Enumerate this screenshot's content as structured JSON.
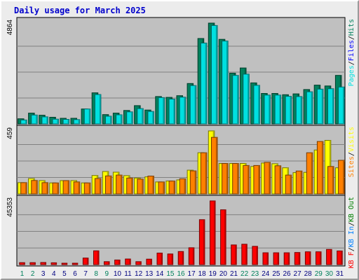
{
  "title": "Daily usage for March 2025",
  "colors": {
    "hits": "#00805c",
    "files": "#0000ff",
    "pages": "#00e0e0",
    "visits": "#ffff00",
    "sites": "#ff8000",
    "kb_in": "#0080ff",
    "kb_out": "#008000",
    "kb_f": "#ff0000",
    "weekend_label": "#00805c",
    "weekday_label": "#000080"
  },
  "chart_data": [
    {
      "type": "bar",
      "panel": "hits-files-pages",
      "ylabel_max": "4864",
      "ylim": [
        0,
        4864
      ],
      "legend": [
        "Pages",
        "Files",
        "Hits"
      ],
      "categories": [
        "1",
        "2",
        "3",
        "4",
        "5",
        "6",
        "7",
        "8",
        "9",
        "10",
        "11",
        "12",
        "13",
        "14",
        "15",
        "16",
        "17",
        "18",
        "19",
        "20",
        "21",
        "22",
        "23",
        "24",
        "25",
        "26",
        "27",
        "28",
        "29",
        "30",
        "31"
      ],
      "weekend_days": [
        1,
        2,
        8,
        9,
        15,
        16,
        22,
        23,
        29,
        30
      ],
      "series": [
        {
          "name": "Hits",
          "values": [
            245,
            520,
            420,
            320,
            270,
            270,
            720,
            1500,
            450,
            520,
            650,
            880,
            670,
            1320,
            1280,
            1360,
            1950,
            4120,
            4864,
            4080,
            2450,
            2700,
            1980,
            1470,
            1470,
            1410,
            1450,
            1660,
            1870,
            1830,
            2340
          ]
        },
        {
          "name": "Files",
          "values": [
            190,
            430,
            340,
            230,
            220,
            210,
            720,
            1420,
            370,
            440,
            580,
            740,
            600,
            1270,
            1200,
            1290,
            1850,
            3900,
            4750,
            4000,
            2340,
            2400,
            1860,
            1390,
            1390,
            1330,
            1320,
            1550,
            1680,
            1700,
            1780
          ]
        }
      ]
    },
    {
      "type": "bar",
      "panel": "visits-sites",
      "ylabel_max": "459",
      "ylim": [
        0,
        459
      ],
      "legend": [
        "Sites",
        "Visits"
      ],
      "categories": [
        "1",
        "2",
        "3",
        "4",
        "5",
        "6",
        "7",
        "8",
        "9",
        "10",
        "11",
        "12",
        "13",
        "14",
        "15",
        "16",
        "17",
        "18",
        "19",
        "20",
        "21",
        "22",
        "23",
        "24",
        "25",
        "26",
        "27",
        "28",
        "29",
        "30",
        "31"
      ],
      "series": [
        {
          "name": "Visits",
          "values": [
            82,
            112,
            97,
            80,
            97,
            97,
            80,
            134,
            163,
            158,
            133,
            116,
            124,
            87,
            94,
            102,
            173,
            300,
            459,
            222,
            222,
            222,
            200,
            225,
            220,
            190,
            155,
            157,
            320,
            390,
            190
          ]
        },
        {
          "name": "Sites",
          "values": [
            82,
            98,
            82,
            80,
            97,
            87,
            80,
            112,
            131,
            137,
            116,
            108,
            130,
            87,
            94,
            110,
            168,
            300,
            412,
            222,
            222,
            207,
            207,
            230,
            205,
            137,
            167,
            300,
            382,
            200,
            245
          ]
        }
      ]
    },
    {
      "type": "bar",
      "panel": "kbytes",
      "ylabel_max": "45353",
      "ylim": [
        0,
        45353
      ],
      "legend": [
        "KB F",
        "KB In",
        "KB Out"
      ],
      "categories": [
        "1",
        "2",
        "3",
        "4",
        "5",
        "6",
        "7",
        "8",
        "9",
        "10",
        "11",
        "12",
        "13",
        "14",
        "15",
        "16",
        "17",
        "18",
        "19",
        "20",
        "21",
        "22",
        "23",
        "24",
        "25",
        "26",
        "27",
        "28",
        "29",
        "30",
        "31"
      ],
      "series": [
        {
          "name": "KB F",
          "values": [
            1400,
            1400,
            1500,
            1300,
            1000,
            1000,
            4700,
            9800,
            2100,
            3300,
            4000,
            2100,
            3900,
            8200,
            7600,
            9300,
            12000,
            32000,
            45353,
            39000,
            14000,
            14500,
            13000,
            8400,
            8400,
            8400,
            8600,
            9100,
            9100,
            10800,
            9700
          ]
        }
      ]
    }
  ]
}
